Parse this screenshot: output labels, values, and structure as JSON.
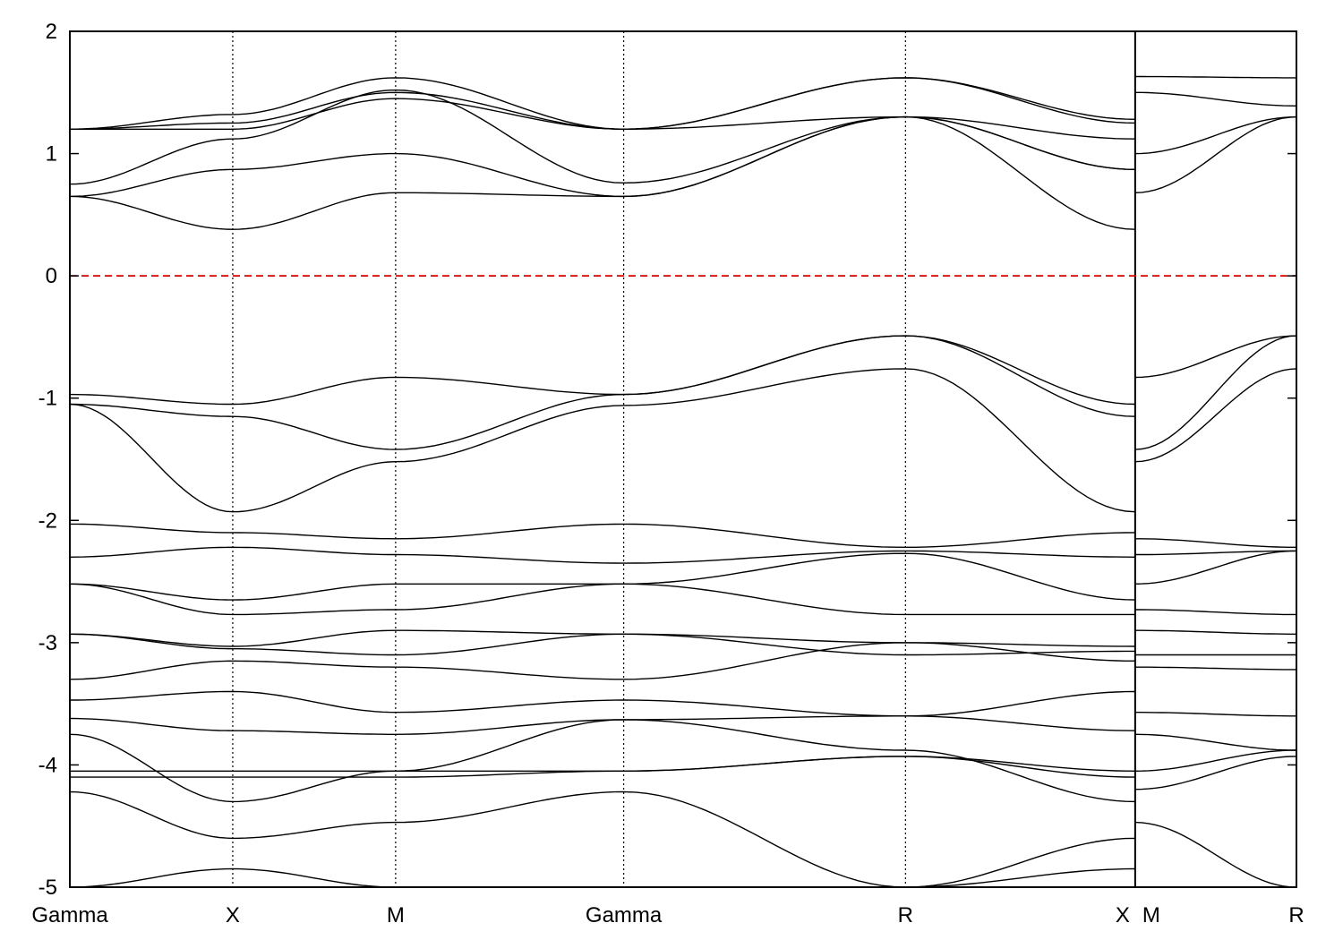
{
  "chart_data": {
    "type": "line",
    "title": "",
    "xlabel": "",
    "ylabel": "",
    "ylim": [
      -5,
      2
    ],
    "yticks": [
      2,
      1,
      0,
      -1,
      -2,
      -3,
      -4,
      -5
    ],
    "ytick_labels": [
      "2",
      "1",
      "0",
      "-1",
      "-2",
      "-3",
      "-4",
      "-5"
    ],
    "kpath_labels": [
      "Gamma",
      "X",
      "M",
      "Gamma",
      "R",
      "X",
      "M",
      "R"
    ],
    "kpath_positions": [
      0,
      1,
      2,
      3.4,
      5.13,
      6.54,
      6.54,
      7.53
    ],
    "xlim": [
      0,
      7.53
    ],
    "path_break_after": "X",
    "vertical_lines": "dotted",
    "fermi_level": {
      "value": 0,
      "style": "dashed",
      "color": "#d40000"
    },
    "line_color": "#000000",
    "series": [
      {
        "x": [
          0,
          1,
          2,
          3.4,
          5.13,
          6.54
        ],
        "values": [
          1.2,
          1.32,
          1.62,
          1.2,
          1.62,
          1.28
        ]
      },
      {
        "x": [
          0,
          1,
          2,
          3.4,
          5.13,
          6.54
        ],
        "values": [
          1.2,
          1.25,
          1.5,
          1.2,
          1.62,
          1.25
        ]
      },
      {
        "x": [
          0,
          1,
          2,
          3.4,
          5.13,
          6.54
        ],
        "values": [
          1.2,
          1.2,
          1.45,
          1.2,
          1.3,
          1.12
        ]
      },
      {
        "x": [
          0,
          1,
          2,
          3.4,
          5.13,
          6.54
        ],
        "values": [
          0.75,
          1.12,
          1.52,
          0.76,
          1.3,
          0.87
        ]
      },
      {
        "x": [
          0,
          1,
          2,
          3.4,
          5.13,
          6.54
        ],
        "values": [
          0.65,
          0.87,
          1.0,
          0.65,
          1.3,
          0.87
        ]
      },
      {
        "x": [
          0,
          1,
          2,
          3.4,
          5.13,
          6.54
        ],
        "values": [
          0.65,
          0.38,
          0.68,
          0.65,
          1.3,
          0.38
        ]
      },
      {
        "x": [
          6.54,
          7.53
        ],
        "values": [
          1.63,
          1.62
        ]
      },
      {
        "x": [
          6.54,
          7.53
        ],
        "values": [
          1.5,
          1.39
        ]
      },
      {
        "x": [
          6.54,
          7.53
        ],
        "values": [
          1.0,
          1.3
        ]
      },
      {
        "x": [
          6.54,
          7.53
        ],
        "values": [
          0.68,
          1.3
        ]
      },
      {
        "x": [
          0,
          1,
          2,
          3.4,
          5.13,
          6.54
        ],
        "values": [
          -0.97,
          -1.05,
          -0.83,
          -0.97,
          -0.49,
          -1.05
        ]
      },
      {
        "x": [
          0,
          1,
          2,
          3.4,
          5.13,
          6.54
        ],
        "values": [
          -1.05,
          -1.15,
          -1.42,
          -0.97,
          -0.49,
          -1.15
        ]
      },
      {
        "x": [
          0,
          1,
          2,
          3.4,
          5.13,
          6.54
        ],
        "values": [
          -1.05,
          -1.93,
          -1.52,
          -1.06,
          -0.76,
          -1.93
        ]
      },
      {
        "x": [
          0,
          1,
          2,
          3.4,
          5.13,
          6.54
        ],
        "values": [
          -2.03,
          -2.1,
          -2.15,
          -2.03,
          -2.22,
          -2.1
        ]
      },
      {
        "x": [
          0,
          1,
          2,
          3.4,
          5.13,
          6.54
        ],
        "values": [
          -2.3,
          -2.22,
          -2.28,
          -2.35,
          -2.25,
          -2.3
        ]
      },
      {
        "x": [
          0,
          1,
          2,
          3.4,
          5.13,
          6.54
        ],
        "values": [
          -2.52,
          -2.65,
          -2.52,
          -2.52,
          -2.27,
          -2.65
        ]
      },
      {
        "x": [
          0,
          1,
          2,
          3.4,
          5.13,
          6.54
        ],
        "values": [
          -2.52,
          -2.77,
          -2.73,
          -2.52,
          -2.77,
          -2.77
        ]
      },
      {
        "x": [
          0,
          1,
          2,
          3.4,
          5.13,
          6.54
        ],
        "values": [
          -2.93,
          -3.03,
          -2.9,
          -2.93,
          -3.0,
          -3.03
        ]
      },
      {
        "x": [
          0,
          1,
          2,
          3.4,
          5.13,
          6.54
        ],
        "values": [
          -2.93,
          -3.05,
          -3.1,
          -2.93,
          -3.1,
          -3.07
        ]
      },
      {
        "x": [
          0,
          1,
          2,
          3.4,
          5.13,
          6.54
        ],
        "values": [
          -3.3,
          -3.15,
          -3.2,
          -3.3,
          -3.0,
          -3.15
        ]
      },
      {
        "x": [
          0,
          1,
          2,
          3.4,
          5.13,
          6.54
        ],
        "values": [
          -3.47,
          -3.4,
          -3.57,
          -3.47,
          -3.6,
          -3.4
        ]
      },
      {
        "x": [
          0,
          1,
          2,
          3.4,
          5.13,
          6.54
        ],
        "values": [
          -3.62,
          -3.72,
          -3.75,
          -3.63,
          -3.6,
          -3.72
        ]
      },
      {
        "x": [
          0,
          1,
          2,
          3.4,
          5.13,
          6.54
        ],
        "values": [
          -3.75,
          -4.3,
          -4.05,
          -3.63,
          -3.88,
          -4.3
        ]
      },
      {
        "x": [
          0,
          1,
          2,
          3.4,
          5.13,
          6.54
        ],
        "values": [
          -4.05,
          -4.05,
          -4.05,
          -4.05,
          -3.93,
          -4.05
        ]
      },
      {
        "x": [
          0,
          1,
          2,
          3.4,
          5.13,
          6.54
        ],
        "values": [
          -4.1,
          -4.1,
          -4.1,
          -4.05,
          -3.93,
          -4.1
        ]
      },
      {
        "x": [
          0,
          1,
          2,
          3.4,
          5.13,
          6.54
        ],
        "values": [
          -4.22,
          -4.6,
          -4.47,
          -4.22,
          -5.0,
          -4.6
        ]
      },
      {
        "x": [
          0,
          1,
          2,
          3.4,
          5.13,
          6.54
        ],
        "values": [
          -5.0,
          -4.85,
          -5.0,
          -5.0,
          -5.0,
          -4.85
        ]
      },
      {
        "x": [
          6.54,
          7.53
        ],
        "values": [
          -0.83,
          -0.49
        ]
      },
      {
        "x": [
          6.54,
          7.53
        ],
        "values": [
          -1.42,
          -0.49
        ]
      },
      {
        "x": [
          6.54,
          7.53
        ],
        "values": [
          -1.52,
          -0.76
        ]
      },
      {
        "x": [
          6.54,
          7.53
        ],
        "values": [
          -2.15,
          -2.22
        ]
      },
      {
        "x": [
          6.54,
          7.53
        ],
        "values": [
          -2.28,
          -2.25
        ]
      },
      {
        "x": [
          6.54,
          7.53
        ],
        "values": [
          -2.52,
          -2.25
        ]
      },
      {
        "x": [
          6.54,
          7.53
        ],
        "values": [
          -2.73,
          -2.77
        ]
      },
      {
        "x": [
          6.54,
          7.53
        ],
        "values": [
          -2.9,
          -2.93
        ]
      },
      {
        "x": [
          6.54,
          7.53
        ],
        "values": [
          -3.1,
          -3.1
        ]
      },
      {
        "x": [
          6.54,
          7.53
        ],
        "values": [
          -3.2,
          -3.22
        ]
      },
      {
        "x": [
          6.54,
          7.53
        ],
        "values": [
          -3.57,
          -3.6
        ]
      },
      {
        "x": [
          6.54,
          7.53
        ],
        "values": [
          -3.75,
          -3.88
        ]
      },
      {
        "x": [
          6.54,
          7.53
        ],
        "values": [
          -4.05,
          -3.88
        ]
      },
      {
        "x": [
          6.54,
          7.53
        ],
        "values": [
          -4.2,
          -3.93
        ]
      },
      {
        "x": [
          6.54,
          7.53
        ],
        "values": [
          -4.47,
          -5.0
        ]
      }
    ]
  }
}
